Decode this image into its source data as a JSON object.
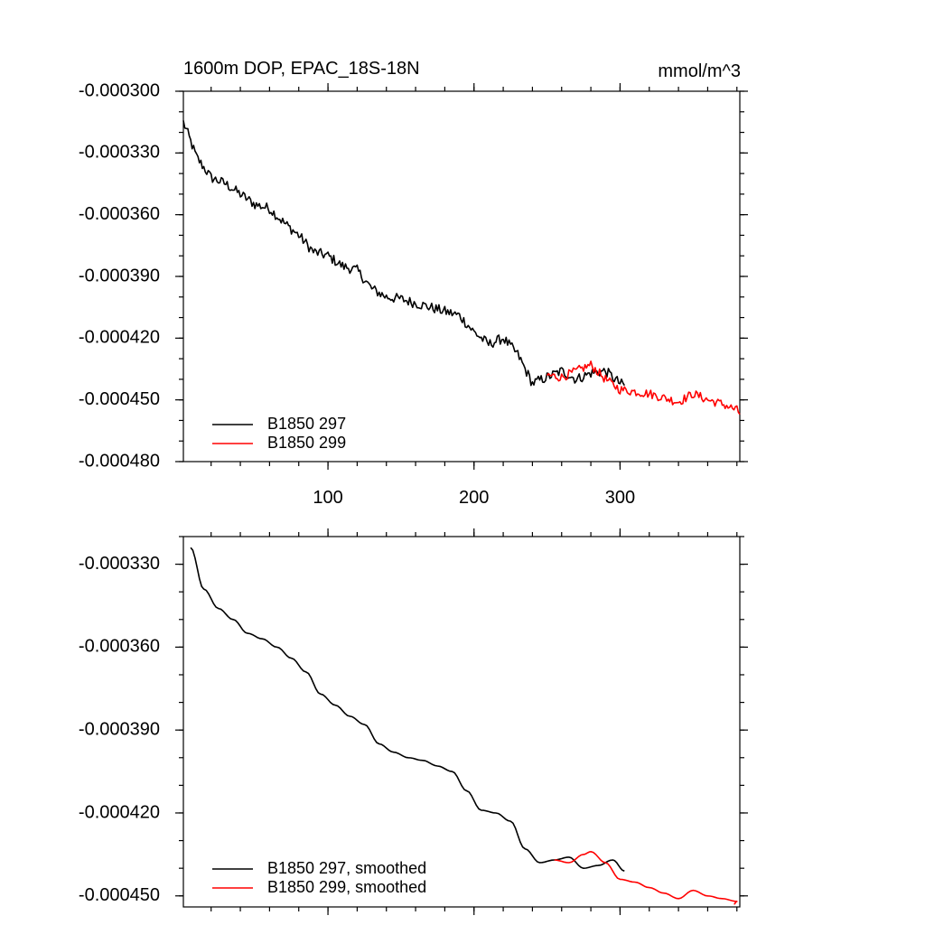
{
  "chart_data": [
    {
      "type": "line",
      "title": "1600m DOP, EPAC_18S-18N",
      "units_label": "mmol/m^3",
      "xlim": [
        1,
        382
      ],
      "ylim": [
        -0.00048,
        -0.0003
      ],
      "x_ticks": [
        100,
        200,
        300
      ],
      "x_tick_labels": [
        "100",
        "200",
        "300"
      ],
      "y_ticks": [
        -0.0003,
        -0.00033,
        -0.00036,
        -0.00039,
        -0.00042,
        -0.00045,
        -0.00048
      ],
      "y_tick_labels": [
        "-0.000300",
        "-0.000330",
        "-0.000360",
        "-0.000390",
        "-0.000420",
        "-0.000450",
        "-0.000480"
      ],
      "y_minor_step": 1e-05,
      "x_minor_step": 20,
      "legend_position": "bottom-left",
      "series": [
        {
          "name": "B1850 297",
          "color": "#000000",
          "noise": 2.5e-06,
          "x": [
            1,
            10,
            20,
            30,
            40,
            50,
            60,
            70,
            80,
            90,
            100,
            110,
            120,
            130,
            140,
            150,
            160,
            170,
            180,
            190,
            200,
            210,
            220,
            230,
            240,
            250,
            260,
            270,
            280,
            290,
            300,
            303
          ],
          "y": [
            -0.000315,
            -0.000332,
            -0.000342,
            -0.000345,
            -0.00035,
            -0.000355,
            -0.000357,
            -0.000364,
            -0.00037,
            -0.000378,
            -0.00038,
            -0.000385,
            -0.000387,
            -0.000396,
            -0.0004,
            -0.000401,
            -0.000403,
            -0.000405,
            -0.000407,
            -0.000409,
            -0.000417,
            -0.000423,
            -0.00042,
            -0.000428,
            -0.000442,
            -0.000439,
            -0.000436,
            -0.00044,
            -0.000437,
            -0.000436,
            -0.000442,
            -0.000443
          ]
        },
        {
          "name": "B1850 299",
          "color": "#ff0000",
          "noise": 2.2e-06,
          "x": [
            250,
            260,
            270,
            280,
            290,
            300,
            310,
            320,
            330,
            340,
            350,
            360,
            370,
            380,
            382
          ],
          "y": [
            -0.000438,
            -0.000439,
            -0.000436,
            -0.000433,
            -0.00044,
            -0.000445,
            -0.000446,
            -0.000447,
            -0.000449,
            -0.000451,
            -0.000447,
            -0.00045,
            -0.000452,
            -0.000455,
            -0.000457
          ]
        }
      ]
    },
    {
      "type": "line",
      "title": "",
      "xlim": [
        1,
        382
      ],
      "ylim": [
        -0.000454,
        -0.00032
      ],
      "x_ticks": [
        100,
        200,
        300
      ],
      "x_tick_labels": [],
      "y_ticks": [
        -0.00033,
        -0.00036,
        -0.00039,
        -0.00042,
        -0.00045
      ],
      "y_tick_labels": [
        "-0.000330",
        "-0.000360",
        "-0.000390",
        "-0.000420",
        "-0.000450"
      ],
      "y_minor_step": 1e-05,
      "x_minor_step": 20,
      "legend_position": "bottom-left",
      "series": [
        {
          "name": "B1850 297, smoothed",
          "color": "#000000",
          "x": [
            6,
            15,
            25,
            35,
            45,
            55,
            65,
            75,
            85,
            95,
            105,
            115,
            125,
            135,
            145,
            155,
            165,
            175,
            185,
            195,
            205,
            215,
            225,
            235,
            245,
            255,
            265,
            275,
            285,
            295,
            303
          ],
          "y": [
            -0.000324,
            -0.000339,
            -0.000346,
            -0.00035,
            -0.000355,
            -0.000357,
            -0.00036,
            -0.000364,
            -0.000369,
            -0.000377,
            -0.000381,
            -0.000385,
            -0.000388,
            -0.000395,
            -0.000398,
            -0.0004,
            -0.000401,
            -0.000403,
            -0.000405,
            -0.000412,
            -0.000419,
            -0.00042,
            -0.000423,
            -0.000433,
            -0.000438,
            -0.000437,
            -0.000436,
            -0.00044,
            -0.000439,
            -0.000437,
            -0.000441
          ]
        },
        {
          "name": "B1850 299, smoothed",
          "color": "#ff0000",
          "x": [
            255,
            265,
            275,
            280,
            290,
            300,
            310,
            320,
            330,
            340,
            350,
            360,
            370,
            380,
            378
          ],
          "y": [
            -0.000437,
            -0.000438,
            -0.000435,
            -0.000434,
            -0.000438,
            -0.000444,
            -0.000445,
            -0.000447,
            -0.000449,
            -0.000451,
            -0.000448,
            -0.00045,
            -0.000451,
            -0.000452,
            -0.000453
          ]
        }
      ]
    }
  ]
}
